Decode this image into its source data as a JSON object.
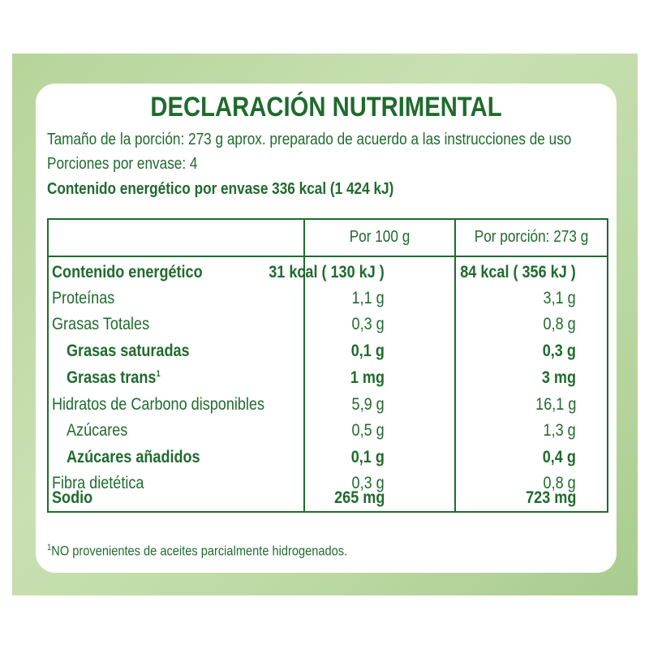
{
  "label": {
    "title": "DECLARACIÓN NUTRIMENTAL",
    "serving_size": "Tamaño de la porción: 273 g aprox. preparado de acuerdo a las instrucciones de uso",
    "servings": "Porciones por envase: 4",
    "energy_per_pack": "Contenido energético por envase 336 kcal (1 424 kJ)",
    "col_per100": "Por 100 g",
    "col_perserving": "Por porción: 273 g",
    "rows": [
      {
        "label": "Contenido energético",
        "per100": "31 kcal ( 130 kJ )",
        "perserving": "84 kcal ( 356 kJ )"
      },
      {
        "label": "Proteínas",
        "per100": "1,1 g",
        "perserving": "3,1 g"
      },
      {
        "label": "Grasas Totales",
        "per100": "0,3 g",
        "perserving": "0,8 g"
      },
      {
        "label": "Grasas saturadas",
        "per100": "0,1 g",
        "perserving": "0,3 g"
      },
      {
        "label": "Grasas trans",
        "per100": "1 mg",
        "perserving": "3 mg"
      },
      {
        "label": "Hidratos de Carbono disponibles",
        "per100": "5,9 g",
        "perserving": "16,1 g"
      },
      {
        "label": "Azúcares",
        "per100": "0,5 g",
        "perserving": "1,3 g"
      },
      {
        "label": "Azúcares añadidos",
        "per100": "0,1 g",
        "perserving": "0,4 g"
      },
      {
        "label": "Fibra dietética",
        "per100": "0,3 g",
        "perserving": "0,8 g"
      },
      {
        "label": "Sodio",
        "per100": "265 mg",
        "perserving": "723 mg"
      }
    ],
    "footnote_mark": "1",
    "footnote": "NO provenientes de aceites parcialmente hidrogenados."
  }
}
